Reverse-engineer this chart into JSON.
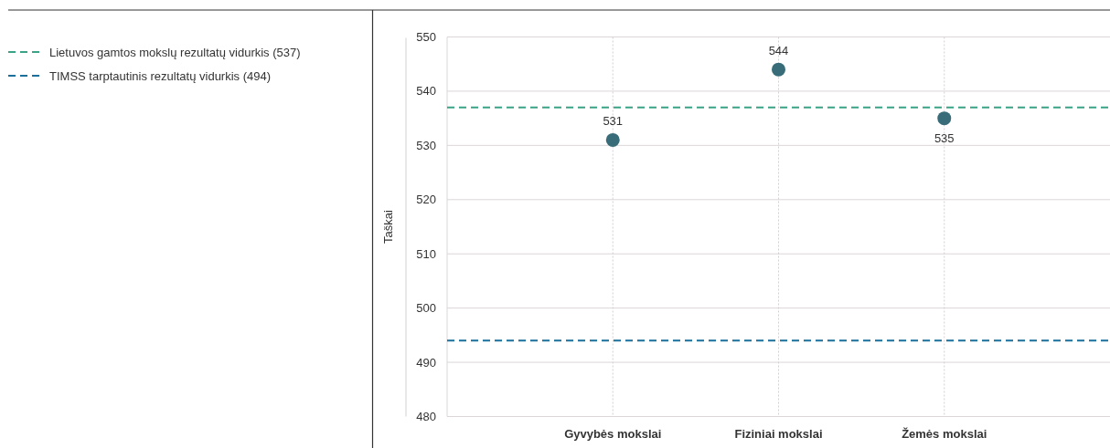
{
  "chart_data": {
    "type": "scatter",
    "ylabel": "Taškai",
    "categories": [
      "Gyvybės mokslai",
      "Fiziniai mokslai",
      "Žemės mokslai"
    ],
    "series": [
      {
        "color": "#386c78",
        "values": [
          531,
          544,
          535
        ]
      }
    ],
    "ylim": [
      480,
      550
    ],
    "yticks": [
      480,
      490,
      500,
      510,
      520,
      530,
      540,
      550
    ],
    "grid": true,
    "marker": "circle",
    "data_labels": true,
    "legend": "top left",
    "ref_lines": [
      {
        "axis": "y",
        "value": 537,
        "label": "Lietuvos gamtos mokslų rezultatų vidurkis (537)",
        "color": "#3aa386",
        "line_style": "dashed"
      },
      {
        "axis": "y",
        "value": 494,
        "label": "TIMSS tarptautinis rezultatų vidurkis (494)",
        "color": "#1a6f9b",
        "line_style": "dashed"
      }
    ]
  }
}
